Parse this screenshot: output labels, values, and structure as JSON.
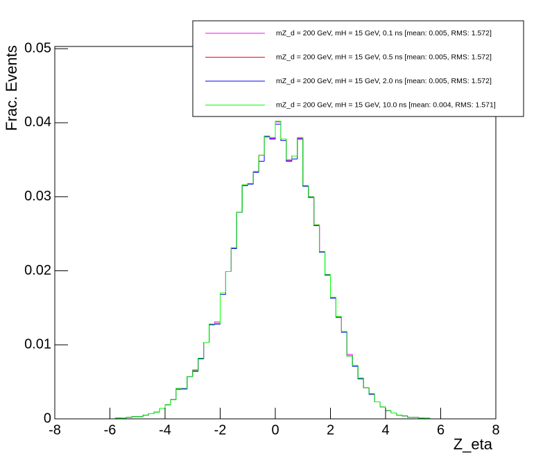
{
  "chart_data": {
    "type": "histogram",
    "xlabel": "Z_eta",
    "ylabel": "Frac. Events",
    "xlim": [
      -8,
      8
    ],
    "ylim": [
      0,
      0.0503
    ],
    "xticks": [
      -8,
      -6,
      -4,
      -2,
      0,
      2,
      4,
      6,
      8
    ],
    "yticks": [
      0,
      0.01,
      0.02,
      0.03,
      0.04,
      0.05
    ],
    "bins": [
      -8,
      -7.8,
      -7.6,
      -7.4,
      -7.2,
      -7,
      -6.8,
      -6.6,
      -6.4,
      -6.2,
      -6,
      -5.8,
      -5.6,
      -5.4,
      -5.2,
      -5,
      -4.8,
      -4.6,
      -4.4,
      -4.2,
      -4,
      -3.8,
      -3.6,
      -3.4,
      -3.2,
      -3,
      -2.8,
      -2.6,
      -2.4,
      -2.2,
      -2,
      -1.8,
      -1.6,
      -1.4,
      -1.2,
      -1,
      -0.8,
      -0.6,
      -0.4,
      -0.2,
      0,
      0.2,
      0.4,
      0.6,
      0.8,
      1,
      1.2,
      1.4,
      1.6,
      1.8,
      2,
      2.2,
      2.4,
      2.6,
      2.8,
      3,
      3.2,
      3.4,
      3.6,
      3.8,
      4,
      4.2,
      4.4,
      4.6,
      4.8,
      5,
      5.2,
      5.4,
      5.6,
      5.8,
      6,
      6.2,
      6.4,
      6.6,
      6.8,
      7,
      7.2,
      7.4,
      7.6,
      7.8,
      8
    ],
    "series": [
      {
        "name": "mZ_d = 200 GeV, mH = 15 GeV, 0.1 ns [mean: 0.005, RMS: 1.572]",
        "color": "#ff00ff",
        "values": [
          0,
          0,
          0,
          0,
          0,
          0,
          0,
          0,
          0,
          0,
          0,
          0.0001,
          0.0001,
          0.0002,
          0.0003,
          0.0003,
          0.0005,
          0.0007,
          0.0009,
          0.0014,
          0.0019,
          0.0026,
          0.0041,
          0.004,
          0.0057,
          0.0066,
          0.0082,
          0.0103,
          0.0128,
          0.0131,
          0.017,
          0.0199,
          0.0231,
          0.0279,
          0.0316,
          0.0318,
          0.0334,
          0.0356,
          0.0381,
          0.0379,
          0.0401,
          0.0378,
          0.0349,
          0.0355,
          0.0379,
          0.0315,
          0.03,
          0.0262,
          0.0226,
          0.0195,
          0.0164,
          0.0138,
          0.0118,
          0.0087,
          0.0072,
          0.0055,
          0.0042,
          0.0034,
          0.0023,
          0.0016,
          0.0011,
          0.0008,
          0.0005,
          0.0004,
          0.0002,
          0.0002,
          0.0001,
          0.0001,
          0,
          0,
          0,
          0,
          0,
          0,
          0,
          0,
          0,
          0,
          0,
          0
        ]
      },
      {
        "name": "mZ_d = 200 GeV, mH = 15 GeV, 0.5 ns [mean: 0.005, RMS: 1.572]",
        "color": "#ff0000",
        "values": [
          0,
          0,
          0,
          0,
          0,
          0,
          0,
          0,
          0,
          0,
          0,
          0.0001,
          0.0001,
          0.0002,
          0.0003,
          0.0003,
          0.0005,
          0.0007,
          0.0009,
          0.0014,
          0.0019,
          0.0026,
          0.0041,
          0.004,
          0.0057,
          0.0065,
          0.0082,
          0.0103,
          0.0128,
          0.0129,
          0.017,
          0.0199,
          0.0231,
          0.0279,
          0.0316,
          0.0318,
          0.0334,
          0.0356,
          0.0382,
          0.038,
          0.0402,
          0.0378,
          0.035,
          0.0355,
          0.038,
          0.0315,
          0.03,
          0.0262,
          0.0226,
          0.0195,
          0.0164,
          0.0138,
          0.0118,
          0.0085,
          0.0072,
          0.0055,
          0.0042,
          0.0034,
          0.0023,
          0.0016,
          0.0011,
          0.0008,
          0.0005,
          0.0004,
          0.0002,
          0.0002,
          0.0001,
          0.0001,
          0,
          0,
          0,
          0,
          0,
          0,
          0,
          0,
          0,
          0,
          0,
          0
        ]
      },
      {
        "name": "mZ_d = 200 GeV, mH = 15 GeV, 2.0 ns [mean: 0.005, RMS: 1.572]",
        "color": "#0000ff",
        "values": [
          0,
          0,
          0,
          0,
          0,
          0,
          0,
          0,
          0,
          0,
          0,
          0.0001,
          0.0001,
          0.0002,
          0.0003,
          0.0003,
          0.0005,
          0.0007,
          0.0009,
          0.0014,
          0.0019,
          0.0026,
          0.004,
          0.0041,
          0.0057,
          0.0064,
          0.0081,
          0.0103,
          0.0127,
          0.0128,
          0.0168,
          0.0199,
          0.023,
          0.0279,
          0.0315,
          0.0317,
          0.0333,
          0.0348,
          0.0381,
          0.0378,
          0.0398,
          0.0376,
          0.0348,
          0.0351,
          0.0378,
          0.0314,
          0.0299,
          0.0261,
          0.0225,
          0.0194,
          0.0163,
          0.0137,
          0.0117,
          0.0085,
          0.0071,
          0.0054,
          0.0042,
          0.0033,
          0.0023,
          0.0016,
          0.0011,
          0.0008,
          0.0005,
          0.0004,
          0.0002,
          0.0002,
          0.0001,
          0.0001,
          0,
          0,
          0,
          0,
          0,
          0,
          0,
          0,
          0,
          0,
          0,
          0
        ]
      },
      {
        "name": "mZ_d = 200 GeV, mH = 15 GeV, 10.0 ns [mean: 0.004, RMS: 1.571]",
        "color": "#00ff00",
        "values": [
          0,
          0,
          0,
          0,
          0,
          0,
          0,
          0,
          0,
          0,
          0,
          0.0001,
          0.0001,
          0.0002,
          0.0003,
          0.0003,
          0.0005,
          0.0007,
          0.0009,
          0.0014,
          0.0019,
          0.0026,
          0.0041,
          0.004,
          0.0057,
          0.0065,
          0.0082,
          0.0103,
          0.0128,
          0.0129,
          0.017,
          0.0199,
          0.0231,
          0.0279,
          0.0316,
          0.0318,
          0.0334,
          0.0356,
          0.0382,
          0.038,
          0.0402,
          0.0378,
          0.035,
          0.0355,
          0.038,
          0.0315,
          0.03,
          0.0262,
          0.0226,
          0.0195,
          0.0164,
          0.0138,
          0.0118,
          0.0085,
          0.0072,
          0.0055,
          0.0042,
          0.0034,
          0.0023,
          0.0016,
          0.0011,
          0.0008,
          0.0005,
          0.0004,
          0.0002,
          0.0002,
          0.0001,
          0.0001,
          0,
          0,
          0,
          0,
          0,
          0,
          0,
          0,
          0,
          0,
          0,
          0
        ]
      }
    ]
  }
}
